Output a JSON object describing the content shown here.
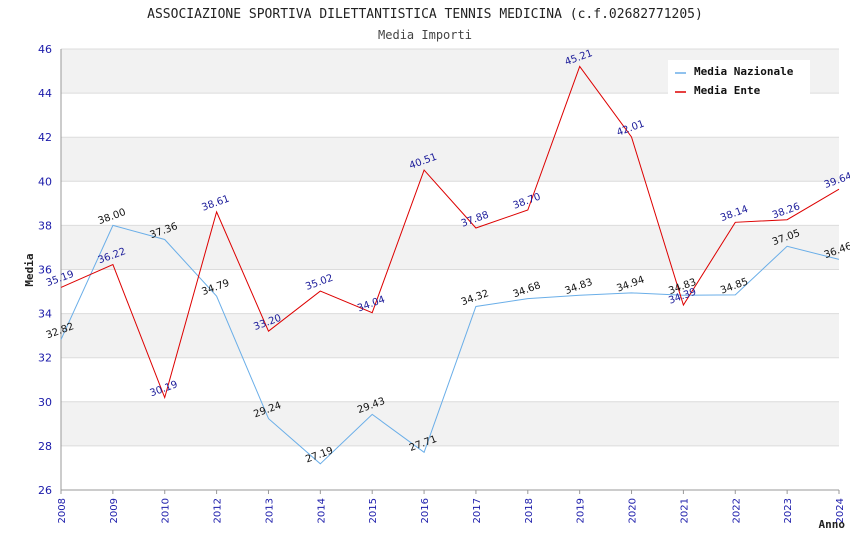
{
  "chart_data": {
    "type": "line",
    "title": "ASSOCIAZIONE SPORTIVA DILETTANTISTICA TENNIS MEDICINA (c.f.02682771205)",
    "subtitle": "Media Importi",
    "xlabel": "Anno",
    "ylabel": "Media",
    "ylim": [
      26,
      46
    ],
    "yticks": [
      "26",
      "28",
      "30",
      "32",
      "34",
      "36",
      "38",
      "40",
      "42",
      "44",
      "46"
    ],
    "categories": [
      "2008",
      "2009",
      "2010",
      "2012",
      "2013",
      "2014",
      "2015",
      "2016",
      "2017",
      "2018",
      "2019",
      "2020",
      "2021",
      "2022",
      "2023",
      "2024"
    ],
    "legend_position": "top-right",
    "grid": true,
    "series": [
      {
        "name": "Media Nazionale",
        "color": "#6aaee8",
        "values": [
          32.82,
          38.0,
          37.36,
          34.79,
          29.24,
          27.19,
          29.43,
          27.71,
          34.32,
          34.68,
          34.83,
          34.94,
          34.83,
          34.85,
          37.05,
          36.46
        ],
        "labels": [
          "32.82",
          "38.00",
          "37.36",
          "34.79",
          "29.24",
          "27.19",
          "29.43",
          "27.71",
          "34.32",
          "34.68",
          "34.83",
          "34.94",
          "34.83",
          "34.85",
          "37.05",
          "36.46"
        ]
      },
      {
        "name": "Media Ente",
        "color": "#dd0000",
        "values": [
          35.19,
          36.22,
          30.19,
          38.61,
          33.2,
          35.02,
          34.04,
          40.51,
          37.88,
          38.7,
          45.21,
          42.01,
          34.39,
          38.14,
          38.26,
          39.64
        ],
        "labels": [
          "35.19",
          "36.22",
          "30.19",
          "38.61",
          "33.20",
          "35.02",
          "34.04",
          "40.51",
          "37.88",
          "38.70",
          "45.21",
          "42.01",
          "34.39",
          "38.14",
          "38.26",
          "39.64"
        ]
      }
    ]
  }
}
